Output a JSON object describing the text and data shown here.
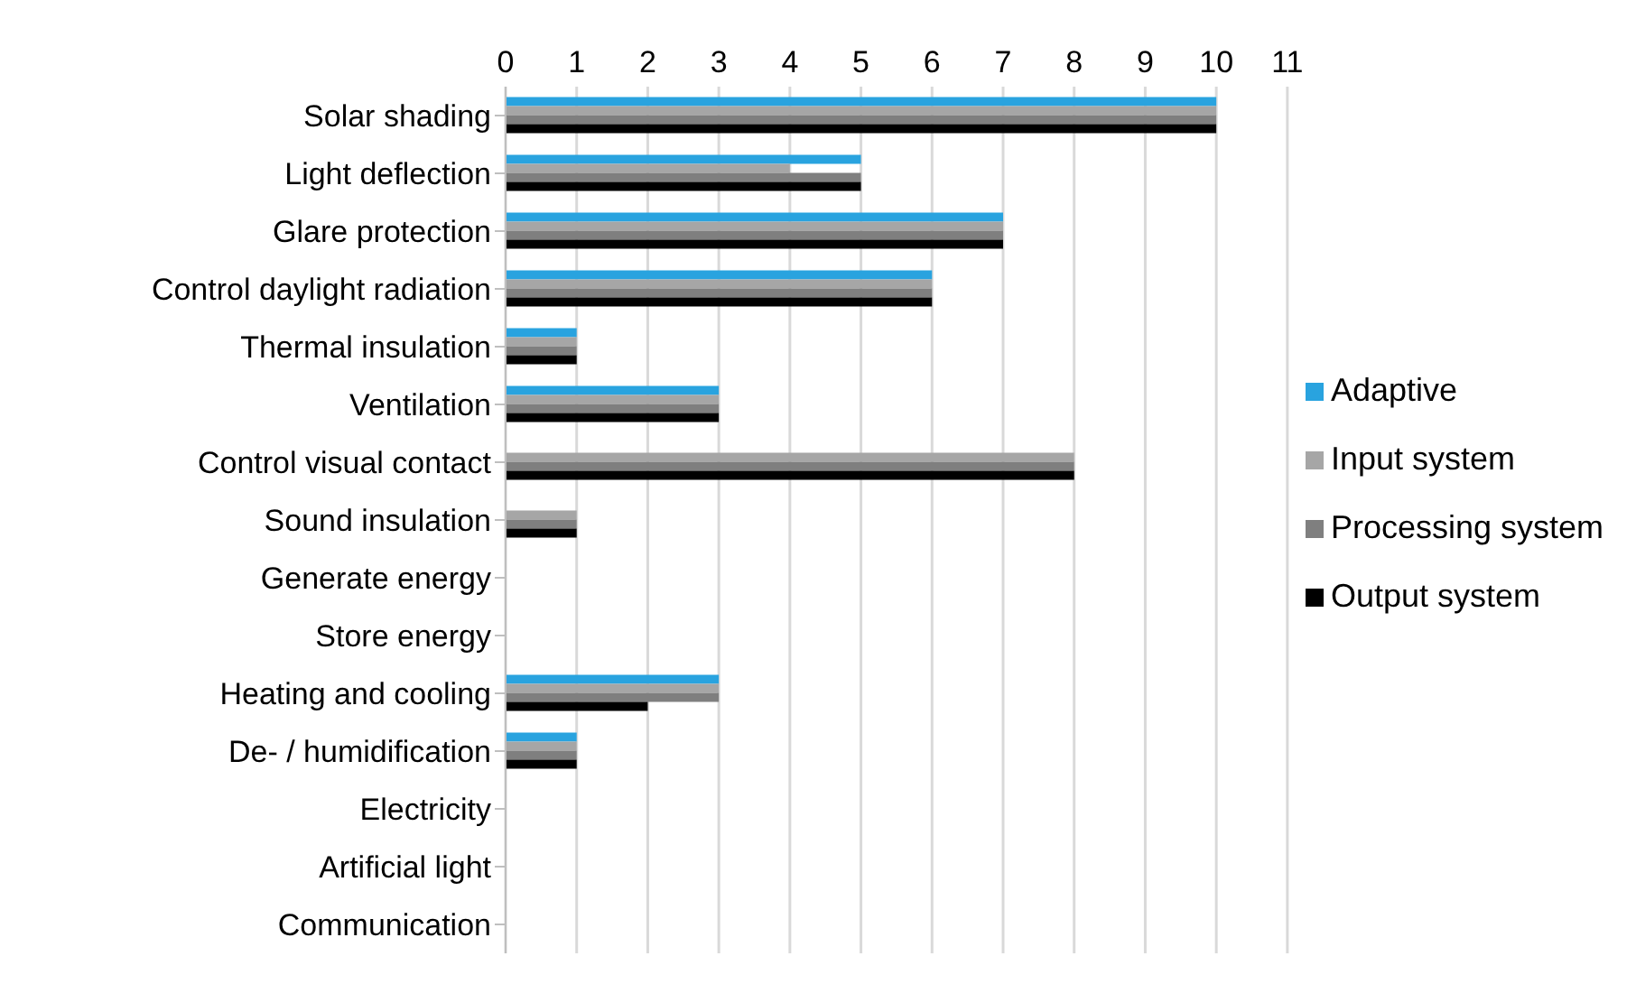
{
  "chart_data": {
    "type": "bar",
    "orientation": "horizontal",
    "categories": [
      "Solar shading",
      "Light deflection",
      "Glare protection",
      "Control daylight radiation",
      "Thermal insulation",
      "Ventilation",
      "Control visual contact",
      "Sound insulation",
      "Generate energy",
      "Store energy",
      "Heating and cooling",
      "De- / humidification",
      "Electricity",
      "Artificial light",
      "Communication"
    ],
    "series": [
      {
        "name": "Adaptive",
        "color": "#29a3df",
        "values": [
          10,
          5,
          7,
          6,
          1,
          3,
          0,
          0,
          0,
          0,
          3,
          1,
          0,
          0,
          0
        ]
      },
      {
        "name": "Input system",
        "color": "#a6a6a6",
        "values": [
          10,
          4,
          7,
          6,
          1,
          3,
          8,
          1,
          0,
          0,
          3,
          1,
          0,
          0,
          0
        ]
      },
      {
        "name": "Processing system",
        "color": "#7f7f7f",
        "values": [
          10,
          5,
          7,
          6,
          1,
          3,
          8,
          1,
          0,
          0,
          3,
          1,
          0,
          0,
          0
        ]
      },
      {
        "name": "Output system",
        "color": "#000000",
        "values": [
          10,
          5,
          7,
          6,
          1,
          3,
          8,
          1,
          0,
          0,
          2,
          1,
          0,
          0,
          0
        ]
      }
    ],
    "xlim": [
      0,
      11
    ],
    "xticks": [
      0,
      1,
      2,
      3,
      4,
      5,
      6,
      7,
      8,
      9,
      10,
      11
    ],
    "grid": "x",
    "legend": "right"
  }
}
